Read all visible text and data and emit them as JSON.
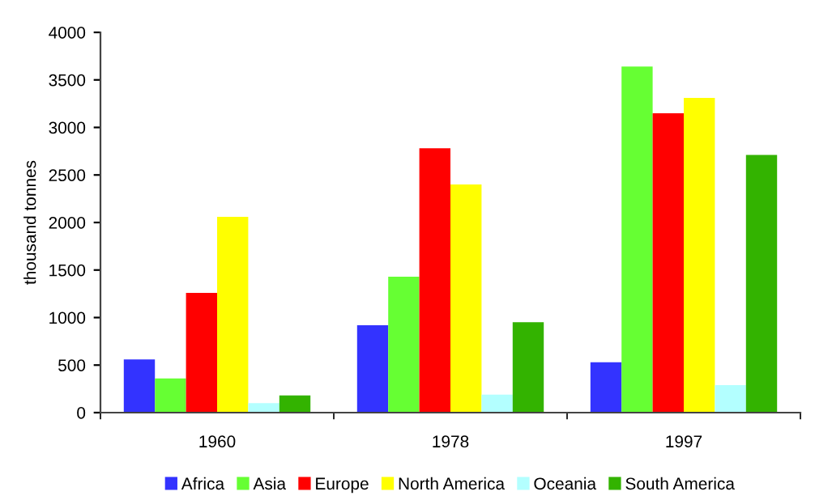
{
  "chart_data": {
    "type": "bar",
    "ylabel": "thousand tonnes",
    "categories": [
      "1960",
      "1978",
      "1997"
    ],
    "series": [
      {
        "name": "Africa",
        "color": "#3333ff",
        "values": [
          560,
          920,
          530
        ]
      },
      {
        "name": "Asia",
        "color": "#66ff33",
        "values": [
          360,
          1430,
          3640
        ]
      },
      {
        "name": "Europe",
        "color": "#ff0000",
        "values": [
          1260,
          2780,
          3150
        ]
      },
      {
        "name": "North America",
        "color": "#ffff00",
        "values": [
          2060,
          2400,
          3310
        ]
      },
      {
        "name": "Oceania",
        "color": "#b3ffff",
        "values": [
          100,
          190,
          290
        ]
      },
      {
        "name": "South America",
        "color": "#33b300",
        "values": [
          180,
          950,
          2710
        ]
      }
    ],
    "ylim": [
      0,
      4000
    ],
    "yticks": [
      0,
      500,
      1000,
      1500,
      2000,
      2500,
      3000,
      3500,
      4000
    ],
    "grid": false,
    "legend": "bottom"
  }
}
